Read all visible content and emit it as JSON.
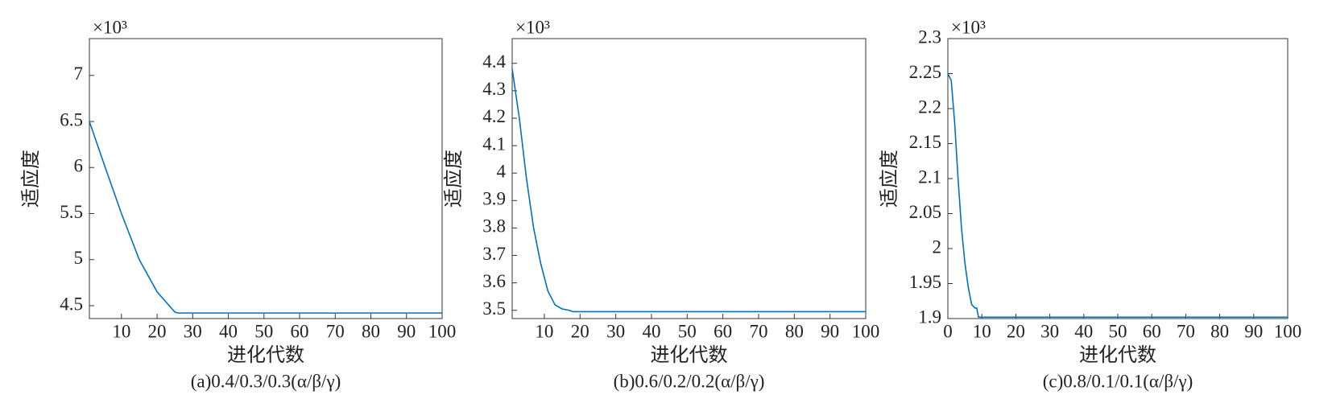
{
  "chart_data": [
    {
      "type": "line",
      "multiplier": "×10³",
      "x_label": "进化代数",
      "y_label": "适应度",
      "caption": "(a)0.4/0.3/0.3(α/β/γ)",
      "x": [
        1,
        5,
        10,
        15,
        20,
        25,
        26,
        100
      ],
      "values": [
        6.5,
        6.05,
        5.5,
        5.0,
        4.65,
        4.43,
        4.42,
        4.42
      ],
      "color": "#0072bd",
      "xlim": [
        1,
        100
      ],
      "xticks": [
        10,
        20,
        30,
        40,
        50,
        60,
        70,
        80,
        90,
        100
      ],
      "ylim": [
        4.36,
        7.4
      ],
      "yticks": [
        4.5,
        5,
        5.5,
        6,
        6.5,
        7
      ]
    },
    {
      "type": "line",
      "multiplier": "×10³",
      "x_label": "进化代数",
      "y_label": "适应度",
      "caption": "(b)0.6/0.2/0.2(α/β/γ)",
      "x": [
        1,
        3,
        5,
        7,
        9,
        11,
        13,
        15,
        17,
        18,
        100
      ],
      "values": [
        4.38,
        4.2,
        3.98,
        3.8,
        3.67,
        3.57,
        3.52,
        3.505,
        3.5,
        3.495,
        3.495
      ],
      "color": "#0072bd",
      "xlim": [
        1,
        100
      ],
      "xticks": [
        10,
        20,
        30,
        40,
        50,
        60,
        70,
        80,
        90,
        100
      ],
      "ylim": [
        3.47,
        4.49
      ],
      "yticks": [
        3.5,
        3.6,
        3.7,
        3.8,
        3.9,
        4,
        4.1,
        4.2,
        4.3,
        4.4
      ]
    },
    {
      "type": "line",
      "multiplier": "×10³",
      "x_label": "进化代数",
      "y_label": "适应度",
      "caption": "(c)0.8/0.1/0.1(α/β/γ)",
      "x": [
        0,
        1,
        2,
        3,
        4,
        5,
        6,
        7,
        8,
        8.5,
        9,
        100
      ],
      "values": [
        2.25,
        2.24,
        2.18,
        2.1,
        2.03,
        1.98,
        1.945,
        1.92,
        1.915,
        1.915,
        1.902,
        1.902
      ],
      "color": "#0072bd",
      "xlim": [
        0,
        100
      ],
      "xticks": [
        0,
        10,
        20,
        30,
        40,
        50,
        60,
        70,
        80,
        90,
        100
      ],
      "ylim": [
        1.9,
        2.3
      ],
      "yticks": [
        1.9,
        1.95,
        2,
        2.05,
        2.1,
        2.15,
        2.2,
        2.25,
        2.3
      ]
    }
  ]
}
